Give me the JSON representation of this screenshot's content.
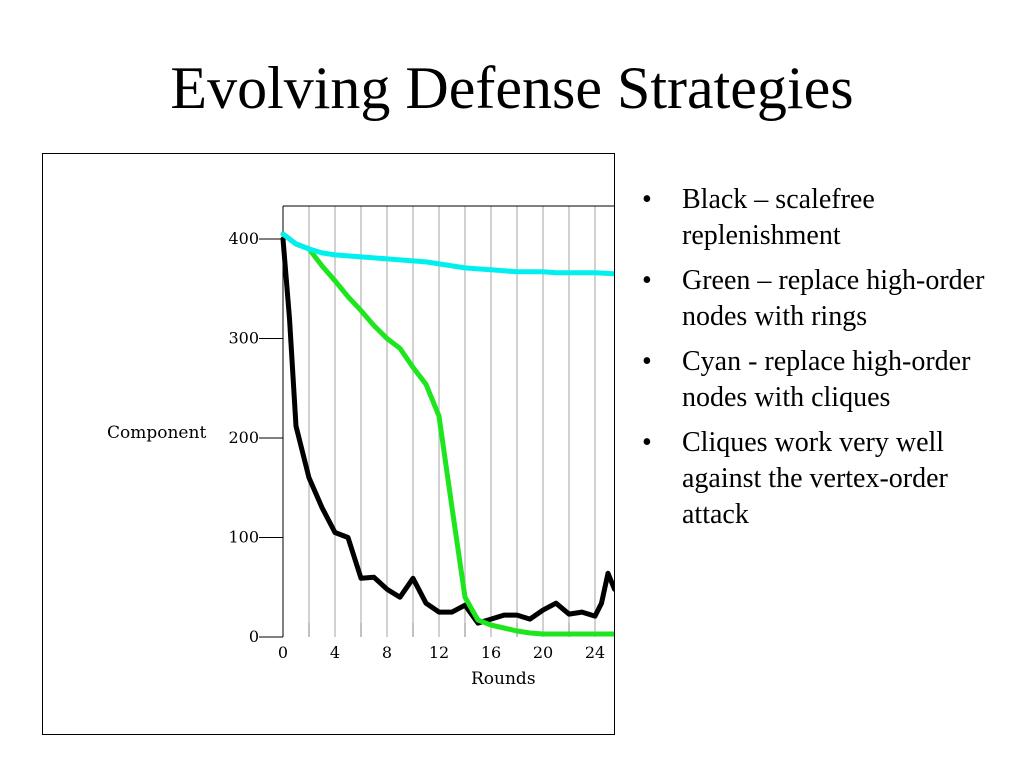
{
  "slide": {
    "title": "Evolving Defense Strategies",
    "bullet_symbol": "•",
    "bullets": [
      "Black – scalefree replenishment",
      "Green – replace high-order nodes with rings",
      "Cyan - replace high-order nodes with cliques",
      "Cliques work very well against the vertex-order attack"
    ]
  },
  "chart_data": {
    "type": "line",
    "title": "",
    "xlabel": "Rounds",
    "ylabel": "Component",
    "xlim": [
      0,
      25.5
    ],
    "ylim": [
      0,
      430
    ],
    "x_ticks": [
      0,
      4,
      8,
      12,
      16,
      20,
      24
    ],
    "y_ticks": [
      0,
      100,
      200,
      300,
      400
    ],
    "grid": "vertical lines every 2 rounds",
    "legend": "none",
    "series": [
      {
        "color": "#000000",
        "points": [
          [
            0,
            400
          ],
          [
            0.5,
            320
          ],
          [
            1,
            212
          ],
          [
            2,
            160
          ],
          [
            3,
            130
          ],
          [
            4,
            105
          ],
          [
            5,
            100
          ],
          [
            6,
            59
          ],
          [
            7,
            60
          ],
          [
            8,
            48
          ],
          [
            9,
            40
          ],
          [
            10,
            59
          ],
          [
            11,
            34
          ],
          [
            12,
            25
          ],
          [
            13,
            25
          ],
          [
            14,
            32
          ],
          [
            15,
            14
          ],
          [
            16,
            18
          ],
          [
            17,
            22
          ],
          [
            18,
            22
          ],
          [
            19,
            18
          ],
          [
            20,
            27
          ],
          [
            21,
            34
          ],
          [
            22,
            23
          ],
          [
            23,
            25
          ],
          [
            24,
            21
          ],
          [
            24.5,
            34
          ],
          [
            25,
            64
          ],
          [
            25.5,
            48
          ]
        ]
      },
      {
        "color": "#1ee61e",
        "points": [
          [
            0,
            405
          ],
          [
            1,
            395
          ],
          [
            2,
            390
          ],
          [
            3,
            373
          ],
          [
            4,
            358
          ],
          [
            5,
            342
          ],
          [
            6,
            328
          ],
          [
            7,
            313
          ],
          [
            8,
            300
          ],
          [
            9,
            290
          ],
          [
            10,
            271
          ],
          [
            11,
            254
          ],
          [
            12,
            222
          ],
          [
            13,
            130
          ],
          [
            14,
            40
          ],
          [
            15,
            17
          ],
          [
            16,
            12
          ],
          [
            17,
            9
          ],
          [
            18,
            6
          ],
          [
            19,
            4
          ],
          [
            20,
            3
          ],
          [
            21,
            3
          ],
          [
            22,
            3
          ],
          [
            23,
            3
          ],
          [
            24,
            3
          ],
          [
            25.5,
            3
          ]
        ]
      },
      {
        "color": "#00f0f0",
        "points": [
          [
            0,
            405
          ],
          [
            1,
            395
          ],
          [
            2,
            390
          ],
          [
            3,
            386
          ],
          [
            4,
            384
          ],
          [
            5,
            383
          ],
          [
            6,
            382
          ],
          [
            7,
            381
          ],
          [
            8,
            380
          ],
          [
            9,
            379
          ],
          [
            10,
            378
          ],
          [
            11,
            377
          ],
          [
            12,
            375
          ],
          [
            13,
            373
          ],
          [
            14,
            371
          ],
          [
            15,
            370
          ],
          [
            16,
            369
          ],
          [
            17,
            368
          ],
          [
            18,
            367
          ],
          [
            19,
            367
          ],
          [
            20,
            367
          ],
          [
            21,
            366
          ],
          [
            22,
            366
          ],
          [
            23,
            366
          ],
          [
            24,
            366
          ],
          [
            25.5,
            365
          ]
        ]
      }
    ]
  }
}
